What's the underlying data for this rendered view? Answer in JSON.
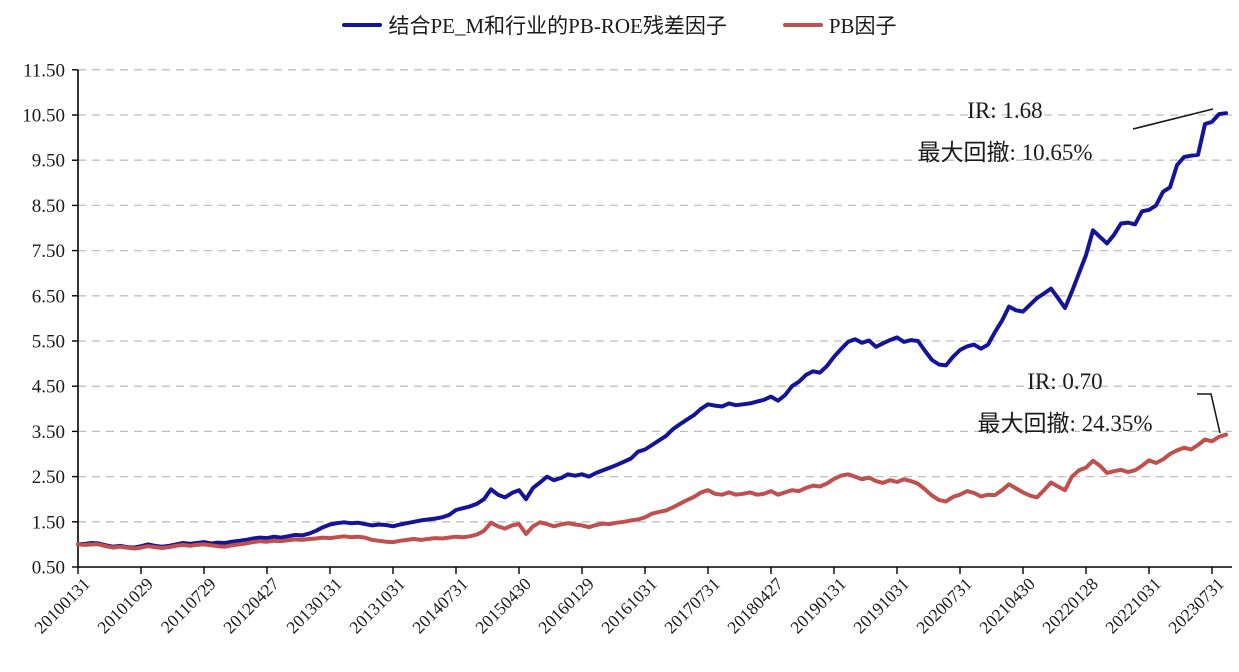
{
  "legend": {
    "items": [
      {
        "label": "结合PE_M和行业的PB-ROE残差因子",
        "color": "#14149B"
      },
      {
        "label": "PB因子",
        "color": "#C0504D"
      }
    ]
  },
  "annotations": {
    "residual": {
      "line1": "IR:  1.68",
      "line2": "最大回撤:  10.65%"
    },
    "pb": {
      "line1": "IR:  0.70",
      "line2": "最大回撤:  24.35%"
    }
  },
  "chart_data": {
    "type": "line",
    "title": "",
    "xlabel": "",
    "ylabel": "",
    "ylim": [
      0.5,
      11.5
    ],
    "grid": "dashed-horizontal",
    "legend_position": "top-center",
    "y_ticks": [
      "0.50",
      "1.50",
      "2.50",
      "3.50",
      "4.50",
      "5.50",
      "6.50",
      "7.50",
      "8.50",
      "9.50",
      "10.50",
      "11.50"
    ],
    "x_tick_labels": [
      "20100131",
      "20101029",
      "20110729",
      "20120427",
      "20130131",
      "20131031",
      "20140731",
      "20150430",
      "20160129",
      "20161031",
      "20170731",
      "20180427",
      "20190131",
      "20191031",
      "20200731",
      "20210430",
      "20220128",
      "20221031",
      "20230731"
    ],
    "x_start_month": "2010-01",
    "months_per_tick": 9,
    "series": [
      {
        "name": "结合PE_M和行业的PB-ROE残差因子",
        "color": "#14149B",
        "values": [
          1.0,
          1.01,
          1.03,
          1.02,
          0.98,
          0.95,
          0.97,
          0.94,
          0.93,
          0.96,
          1.0,
          0.97,
          0.95,
          0.97,
          1.0,
          1.03,
          1.01,
          1.03,
          1.05,
          1.02,
          1.04,
          1.03,
          1.06,
          1.08,
          1.1,
          1.13,
          1.15,
          1.14,
          1.17,
          1.15,
          1.18,
          1.21,
          1.2,
          1.24,
          1.3,
          1.38,
          1.44,
          1.47,
          1.49,
          1.47,
          1.48,
          1.45,
          1.42,
          1.44,
          1.43,
          1.4,
          1.44,
          1.47,
          1.5,
          1.53,
          1.55,
          1.57,
          1.6,
          1.65,
          1.76,
          1.8,
          1.84,
          1.9,
          2.0,
          2.22,
          2.1,
          2.04,
          2.14,
          2.2,
          2.0,
          2.25,
          2.37,
          2.5,
          2.42,
          2.47,
          2.55,
          2.52,
          2.55,
          2.5,
          2.58,
          2.64,
          2.7,
          2.76,
          2.83,
          2.9,
          3.05,
          3.1,
          3.2,
          3.3,
          3.4,
          3.55,
          3.66,
          3.76,
          3.86,
          4.0,
          4.1,
          4.07,
          4.05,
          4.12,
          4.08,
          4.1,
          4.12,
          4.16,
          4.2,
          4.27,
          4.18,
          4.3,
          4.5,
          4.6,
          4.75,
          4.83,
          4.8,
          4.95,
          5.15,
          5.32,
          5.48,
          5.54,
          5.46,
          5.51,
          5.37,
          5.45,
          5.52,
          5.58,
          5.48,
          5.52,
          5.5,
          5.28,
          5.08,
          4.98,
          4.96,
          5.15,
          5.3,
          5.38,
          5.42,
          5.33,
          5.42,
          5.7,
          5.95,
          6.26,
          6.18,
          6.15,
          6.3,
          6.45,
          6.55,
          6.66,
          6.45,
          6.23,
          6.6,
          7.0,
          7.4,
          7.95,
          7.8,
          7.66,
          7.85,
          8.1,
          8.12,
          8.08,
          8.37,
          8.4,
          8.5,
          8.8,
          8.9,
          9.39,
          9.57,
          9.6,
          9.62,
          10.3,
          10.35,
          10.52,
          10.54
        ],
        "ir": "1.68",
        "max_drawdown": "10.65%"
      },
      {
        "name": "PB因子",
        "color": "#C0504D",
        "values": [
          1.0,
          0.99,
          1.0,
          1.0,
          0.96,
          0.93,
          0.95,
          0.93,
          0.91,
          0.93,
          0.96,
          0.94,
          0.92,
          0.94,
          0.97,
          0.99,
          0.97,
          0.99,
          1.0,
          0.98,
          0.96,
          0.95,
          0.98,
          1.0,
          1.02,
          1.05,
          1.07,
          1.06,
          1.08,
          1.07,
          1.09,
          1.11,
          1.1,
          1.12,
          1.13,
          1.15,
          1.14,
          1.16,
          1.18,
          1.16,
          1.17,
          1.15,
          1.1,
          1.08,
          1.06,
          1.05,
          1.08,
          1.1,
          1.12,
          1.1,
          1.12,
          1.14,
          1.13,
          1.15,
          1.17,
          1.16,
          1.18,
          1.22,
          1.3,
          1.48,
          1.4,
          1.35,
          1.42,
          1.45,
          1.23,
          1.4,
          1.49,
          1.45,
          1.4,
          1.44,
          1.47,
          1.44,
          1.42,
          1.38,
          1.43,
          1.46,
          1.45,
          1.48,
          1.5,
          1.53,
          1.55,
          1.6,
          1.68,
          1.72,
          1.75,
          1.82,
          1.9,
          1.98,
          2.05,
          2.15,
          2.2,
          2.12,
          2.1,
          2.15,
          2.1,
          2.12,
          2.15,
          2.1,
          2.12,
          2.18,
          2.1,
          2.15,
          2.2,
          2.18,
          2.25,
          2.3,
          2.28,
          2.35,
          2.45,
          2.52,
          2.55,
          2.5,
          2.44,
          2.48,
          2.4,
          2.36,
          2.42,
          2.38,
          2.44,
          2.4,
          2.34,
          2.22,
          2.08,
          1.98,
          1.95,
          2.05,
          2.1,
          2.18,
          2.14,
          2.06,
          2.1,
          2.09,
          2.2,
          2.33,
          2.24,
          2.15,
          2.08,
          2.04,
          2.2,
          2.37,
          2.28,
          2.2,
          2.5,
          2.64,
          2.7,
          2.85,
          2.74,
          2.58,
          2.62,
          2.65,
          2.6,
          2.64,
          2.74,
          2.86,
          2.8,
          2.88,
          3.0,
          3.08,
          3.14,
          3.1,
          3.2,
          3.32,
          3.28,
          3.38,
          3.43
        ],
        "ir": "0.70",
        "max_drawdown": "24.35%"
      }
    ]
  }
}
